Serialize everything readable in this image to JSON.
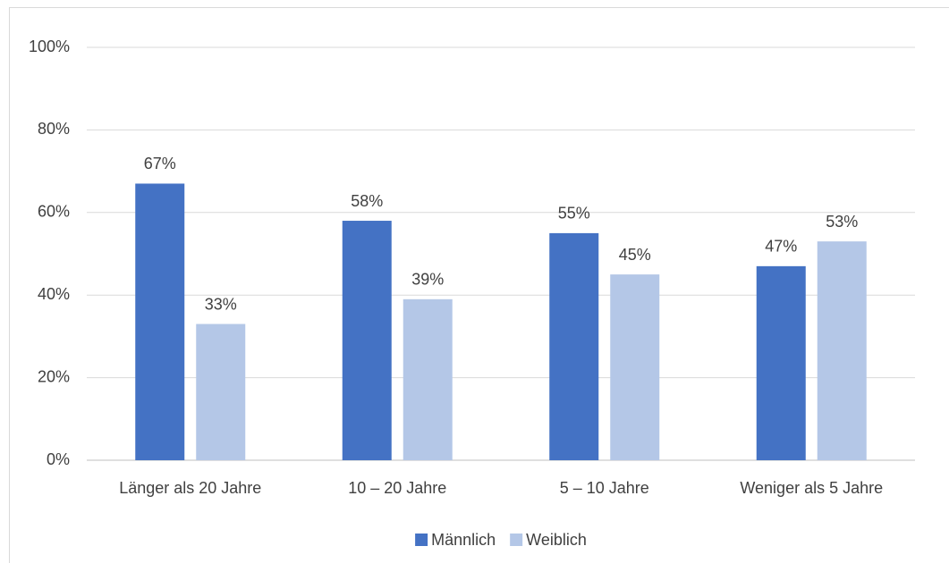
{
  "chart_data": {
    "type": "bar",
    "categories": [
      "Länger als 20 Jahre",
      "10 – 20 Jahre",
      "5 – 10 Jahre",
      "Weniger als 5 Jahre"
    ],
    "series": [
      {
        "name": "Männlich",
        "color": "#4472c4",
        "values": [
          67,
          58,
          55,
          47
        ],
        "value_labels": [
          "67%",
          "58%",
          "55%",
          "47%"
        ]
      },
      {
        "name": "Weiblich",
        "color": "#b4c7e7",
        "values": [
          33,
          39,
          45,
          53
        ],
        "value_labels": [
          "33%",
          "39%",
          "45%",
          "53%"
        ]
      }
    ],
    "ylim": [
      0,
      100
    ],
    "yticks": [
      {
        "value": 0,
        "label": "0%"
      },
      {
        "value": 20,
        "label": "20%"
      },
      {
        "value": 40,
        "label": "40%"
      },
      {
        "value": 60,
        "label": "60%"
      },
      {
        "value": 80,
        "label": "80%"
      },
      {
        "value": 100,
        "label": "100%"
      }
    ],
    "grid": true,
    "legend": "bottom"
  }
}
